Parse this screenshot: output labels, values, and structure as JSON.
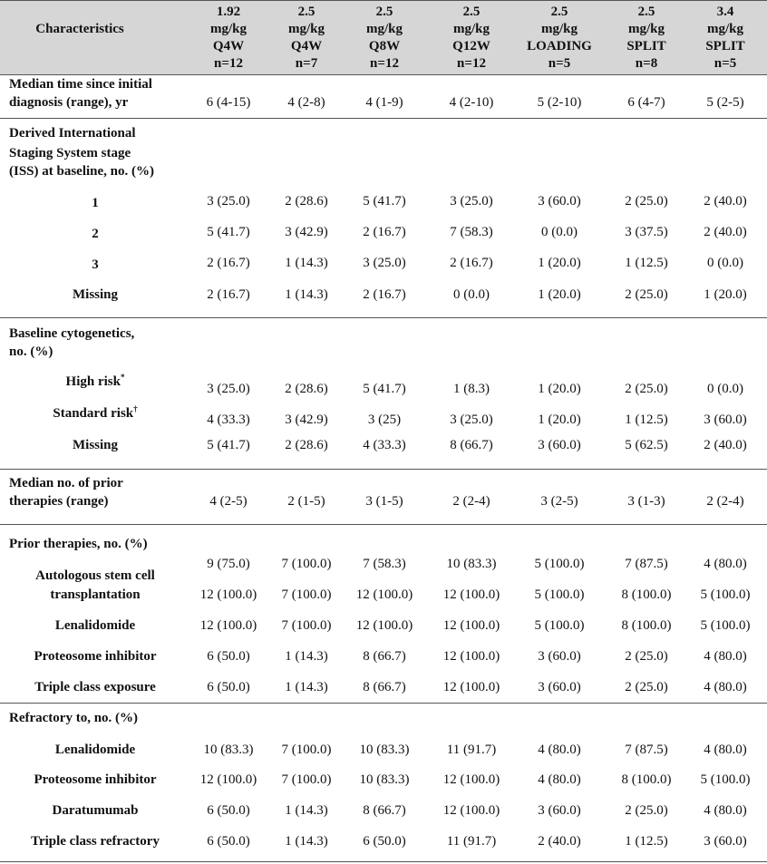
{
  "table": {
    "header": {
      "first": "Characteristics",
      "columns": [
        [
          "1.92",
          "mg/kg",
          "Q4W",
          "n=12"
        ],
        [
          "2.5",
          "mg/kg",
          "Q4W",
          "n=7"
        ],
        [
          "2.5",
          "mg/kg",
          "Q8W",
          "n=12"
        ],
        [
          "2.5",
          "mg/kg",
          "Q12W",
          "n=12"
        ],
        [
          "2.5",
          "mg/kg",
          "LOADING",
          "n=5"
        ],
        [
          "2.5",
          "mg/kg",
          "SPLIT",
          "n=8"
        ],
        [
          "3.4",
          "mg/kg",
          "SPLIT",
          "n=5"
        ]
      ]
    },
    "sections": [
      {
        "label": [
          "Median time since initial",
          "diagnosis (range), yr"
        ],
        "values": [
          "6 (4-15)",
          "4 (2-8)",
          "4 (1-9)",
          "4 (2-10)",
          "5 (2-10)",
          "6 (4-7)",
          "5 (2-5)"
        ]
      },
      {
        "label": [
          "Derived International",
          "Staging System stage",
          "(ISS) at baseline, no. (%)"
        ],
        "items": [
          {
            "label": "1",
            "values": [
              "3 (25.0)",
              "2 (28.6)",
              "5 (41.7)",
              "3 (25.0)",
              "3 (60.0)",
              "2 (25.0)",
              "2 (40.0)"
            ]
          },
          {
            "label": "2",
            "values": [
              "5 (41.7)",
              "3 (42.9)",
              "2 (16.7)",
              "7 (58.3)",
              "0 (0.0)",
              "3 (37.5)",
              "2 (40.0)"
            ]
          },
          {
            "label": "3",
            "values": [
              "2 (16.7)",
              "1 (14.3)",
              "3 (25.0)",
              "2 (16.7)",
              "1 (20.0)",
              "1 (12.5)",
              "0 (0.0)"
            ]
          },
          {
            "label": "Missing",
            "values": [
              "2 (16.7)",
              "1 (14.3)",
              "2 (16.7)",
              "0 (0.0)",
              "1 (20.0)",
              "2 (25.0)",
              "1 (20.0)"
            ]
          }
        ]
      },
      {
        "label": [
          "Baseline cytogenetics,",
          "no. (%)"
        ],
        "items": [
          {
            "label": "High risk",
            "sup": "*",
            "values": [
              "3 (25.0)",
              "2 (28.6)",
              "5 (41.7)",
              "1 (8.3)",
              "1 (20.0)",
              "2 (25.0)",
              "0 (0.0)"
            ]
          },
          {
            "label": "Standard risk",
            "sup": "†",
            "values": [
              "4 (33.3)",
              "3 (42.9)",
              "3 (25)",
              "3 (25.0)",
              "1 (20.0)",
              "1 (12.5)",
              "3 (60.0)"
            ]
          },
          {
            "label": "Missing",
            "values": [
              "5 (41.7)",
              "2 (28.6)",
              "4 (33.3)",
              "8 (66.7)",
              "3 (60.0)",
              "5 (62.5)",
              "2 (40.0)"
            ]
          }
        ]
      },
      {
        "label": [
          "Median no. of prior",
          "therapies (range)"
        ],
        "values": [
          "4 (2-5)",
          "2 (1-5)",
          "3 (1-5)",
          "2 (2-4)",
          "3 (2-5)",
          "3 (1-3)",
          "2 (2-4)"
        ]
      },
      {
        "label": [
          "Prior therapies, no. (%)"
        ],
        "items": [
          {
            "label": "Autologous stem cell",
            "values": [
              "9 (75.0)",
              "7 (100.0)",
              "7 (58.3)",
              "10 (83.3)",
              "5 (100.0)",
              "7 (87.5)",
              "4 (80.0)"
            ]
          },
          {
            "label": "transplantation",
            "values": [
              "12 (100.0)",
              "7 (100.0)",
              "12 (100.0)",
              "12 (100.0)",
              "5 (100.0)",
              "8 (100.0)",
              "5 (100.0)"
            ]
          },
          {
            "label": "Lenalidomide",
            "values": [
              "12 (100.0)",
              "7 (100.0)",
              "12 (100.0)",
              "12 (100.0)",
              "5 (100.0)",
              "8 (100.0)",
              "5 (100.0)"
            ]
          },
          {
            "label": "Proteosome inhibitor",
            "values": [
              "6 (50.0)",
              "1 (14.3)",
              "8 (66.7)",
              "12 (100.0)",
              "3 (60.0)",
              "2 (25.0)",
              "4 (80.0)"
            ]
          },
          {
            "label": "Triple class exposure",
            "values": [
              "6 (50.0)",
              "1 (14.3)",
              "8 (66.7)",
              "12 (100.0)",
              "3 (60.0)",
              "2 (25.0)",
              "4 (80.0)"
            ]
          }
        ]
      },
      {
        "label": [
          "Refractory to, no. (%)"
        ],
        "items": [
          {
            "label": "Lenalidomide",
            "values": [
              "10 (83.3)",
              "7 (100.0)",
              "10 (83.3)",
              "11 (91.7)",
              "4 (80.0)",
              "7 (87.5)",
              "4 (80.0)"
            ]
          },
          {
            "label": "Proteosome inhibitor",
            "values": [
              "12 (100.0)",
              "7 (100.0)",
              "10 (83.3)",
              "12 (100.0)",
              "4 (80.0)",
              "8 (100.0)",
              "5 (100.0)"
            ]
          },
          {
            "label": "Daratumumab",
            "values": [
              "6 (50.0)",
              "1 (14.3)",
              "8 (66.7)",
              "12 (100.0)",
              "3 (60.0)",
              "2 (25.0)",
              "4 (80.0)"
            ]
          },
          {
            "label": "Triple class refractory",
            "values": [
              "6 (50.0)",
              "1 (14.3)",
              "6 (50.0)",
              "11 (91.7)",
              "2 (40.0)",
              "1 (12.5)",
              "3 (60.0)"
            ]
          }
        ]
      }
    ]
  }
}
